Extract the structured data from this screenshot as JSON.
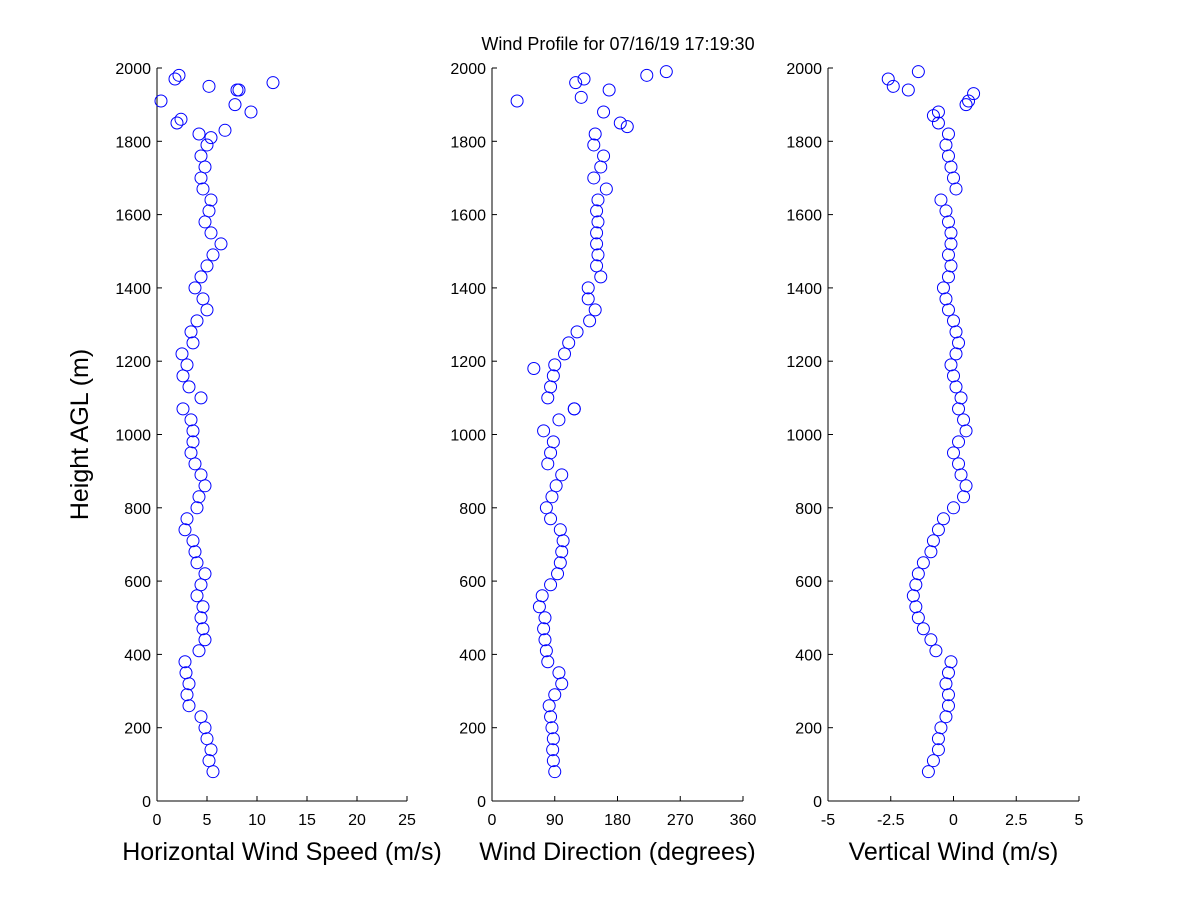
{
  "title": "Wind Profile for  07/16/19 17:19:30",
  "chart_data": [
    {
      "type": "scatter",
      "xlabel": "Horizontal Wind Speed (m/s)",
      "ylabel": "Height AGL (m)",
      "color": "#0000ff",
      "xlim": [
        0,
        25
      ],
      "xticks": [
        0,
        5,
        10,
        15,
        20,
        25
      ],
      "ylim": [
        0,
        2000
      ],
      "yticks": [
        0,
        200,
        400,
        600,
        800,
        1000,
        1200,
        1400,
        1600,
        1800,
        2000
      ],
      "x": [
        5.6,
        5.2,
        5.4,
        5,
        4.8,
        4.4,
        3.2,
        3,
        3.2,
        2.9,
        2.8,
        4.2,
        4.8,
        4.6,
        4.4,
        4.6,
        4,
        4.4,
        4.8,
        4,
        3.8,
        3.6,
        2.8,
        3,
        4,
        4.2,
        4.8,
        4.4,
        3.8,
        3.4,
        3.6,
        3.6,
        3.4,
        2.6,
        4.4,
        3.2,
        2.6,
        3,
        2.5,
        3.6,
        3.4,
        4,
        5,
        4.6,
        3.8,
        4.4,
        5,
        5.6,
        6.4,
        5.4,
        4.8,
        5.2,
        5.4,
        4.6,
        4.4,
        4.8,
        4.4,
        5,
        4.2,
        2,
        9.4,
        0.4,
        8.2,
        1.8,
        11.6,
        5.2,
        8,
        7.8,
        2.4,
        6.8,
        5.4,
        2.2
      ],
      "y": [
        80,
        110,
        140,
        170,
        200,
        230,
        260,
        290,
        320,
        350,
        380,
        410,
        440,
        470,
        500,
        530,
        560,
        590,
        620,
        650,
        680,
        710,
        740,
        770,
        800,
        830,
        860,
        890,
        920,
        950,
        980,
        1010,
        1040,
        1070,
        1100,
        1130,
        1160,
        1190,
        1220,
        1250,
        1280,
        1310,
        1340,
        1370,
        1400,
        1430,
        1460,
        1490,
        1520,
        1550,
        1580,
        1610,
        1640,
        1670,
        1700,
        1730,
        1760,
        1790,
        1820,
        1850,
        1880,
        1910,
        1940,
        1970,
        1960,
        1950,
        1940,
        1900,
        1860,
        1830,
        1810,
        1980
      ]
    },
    {
      "type": "scatter",
      "xlabel": "Wind Direction (degrees)",
      "color": "#0000ff",
      "xlim": [
        0,
        360
      ],
      "xticks": [
        0,
        90,
        180,
        270,
        360
      ],
      "ylim": [
        0,
        2000
      ],
      "yticks": [
        0,
        200,
        400,
        600,
        800,
        1000,
        1200,
        1400,
        1600,
        1800,
        2000
      ],
      "x": [
        90,
        88,
        87,
        88,
        86,
        84,
        82,
        90,
        100,
        96,
        80,
        78,
        76,
        74,
        76,
        68,
        72,
        84,
        94,
        98,
        100,
        102,
        98,
        84,
        78,
        86,
        92,
        100,
        80,
        84,
        88,
        74,
        96,
        118,
        80,
        84,
        88,
        90,
        104,
        110,
        122,
        140,
        148,
        138,
        138,
        156,
        150,
        152,
        150,
        150,
        152,
        150,
        152,
        164,
        146,
        156,
        160,
        146,
        148,
        184,
        160,
        36,
        168,
        132,
        222,
        250,
        194,
        120,
        128,
        60,
        118
      ],
      "y": [
        80,
        110,
        140,
        170,
        200,
        230,
        260,
        290,
        320,
        350,
        380,
        410,
        440,
        470,
        500,
        530,
        560,
        590,
        620,
        650,
        680,
        710,
        740,
        770,
        800,
        830,
        860,
        890,
        920,
        950,
        980,
        1010,
        1040,
        1070,
        1100,
        1130,
        1160,
        1190,
        1220,
        1250,
        1280,
        1310,
        1340,
        1370,
        1400,
        1430,
        1460,
        1490,
        1520,
        1550,
        1580,
        1610,
        1640,
        1670,
        1700,
        1730,
        1760,
        1790,
        1820,
        1850,
        1880,
        1910,
        1940,
        1970,
        1980,
        1990,
        1840,
        1960,
        1920,
        1180,
        1070
      ]
    },
    {
      "type": "scatter",
      "xlabel": "Vertical Wind (m/s)",
      "color": "#0000ff",
      "xlim": [
        -5,
        5
      ],
      "xticks": [
        -5,
        -2.5,
        0,
        2.5,
        5
      ],
      "ylim": [
        0,
        2000
      ],
      "yticks": [
        0,
        200,
        400,
        600,
        800,
        1000,
        1200,
        1400,
        1600,
        1800,
        2000
      ],
      "x": [
        -1,
        -0.8,
        -0.6,
        -0.6,
        -0.5,
        -0.3,
        -0.2,
        -0.2,
        -0.3,
        -0.2,
        -0.1,
        -0.7,
        -0.9,
        -1.2,
        -1.4,
        -1.5,
        -1.6,
        -1.5,
        -1.4,
        -1.2,
        -0.9,
        -0.8,
        -0.6,
        -0.4,
        0,
        0.4,
        0.5,
        0.3,
        0.2,
        0,
        0.2,
        0.5,
        0.4,
        0.2,
        0.3,
        0.1,
        0,
        -0.1,
        0.1,
        0.2,
        0.1,
        0,
        -0.2,
        -0.3,
        -0.4,
        -0.2,
        -0.1,
        -0.2,
        -0.1,
        -0.1,
        -0.2,
        -0.3,
        -0.5,
        0.1,
        0,
        -0.1,
        -0.2,
        -0.3,
        -0.2,
        -0.6,
        -0.6,
        0.6,
        -1.8,
        -2.6,
        -1.4,
        -2.4,
        0.8,
        0.5,
        -0.8
      ],
      "y": [
        80,
        110,
        140,
        170,
        200,
        230,
        260,
        290,
        320,
        350,
        380,
        410,
        440,
        470,
        500,
        530,
        560,
        590,
        620,
        650,
        680,
        710,
        740,
        770,
        800,
        830,
        860,
        890,
        920,
        950,
        980,
        1010,
        1040,
        1070,
        1100,
        1130,
        1160,
        1190,
        1220,
        1250,
        1280,
        1310,
        1340,
        1370,
        1400,
        1430,
        1460,
        1490,
        1520,
        1550,
        1580,
        1610,
        1640,
        1670,
        1700,
        1730,
        1760,
        1790,
        1820,
        1850,
        1880,
        1910,
        1940,
        1970,
        1990,
        1950,
        1930,
        1900,
        1870
      ]
    }
  ]
}
